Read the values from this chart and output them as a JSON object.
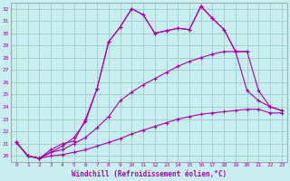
{
  "xlabel": "Windchill (Refroidissement éolien,°C)",
  "background_color": "#c8eef0",
  "grid_color": "#a0cdd0",
  "line_color": "#aa00aa",
  "xlim": [
    -0.5,
    23.5
  ],
  "ylim": [
    19.5,
    32.5
  ],
  "xticks": [
    0,
    1,
    2,
    3,
    4,
    5,
    6,
    7,
    8,
    9,
    10,
    11,
    12,
    13,
    14,
    15,
    16,
    17,
    18,
    19,
    20,
    21,
    22,
    23
  ],
  "yticks": [
    20,
    21,
    22,
    23,
    24,
    25,
    26,
    27,
    28,
    29,
    30,
    31,
    32
  ],
  "lines": [
    {
      "x": [
        0,
        1,
        2,
        3,
        4,
        5,
        6,
        7,
        8,
        9,
        10,
        11,
        12,
        13,
        14,
        15,
        16,
        17,
        18,
        19,
        20,
        21,
        22,
        23
      ],
      "y": [
        21.1,
        20.0,
        19.8,
        20.5,
        21.0,
        21.2,
        23.0,
        25.5,
        29.3,
        30.5,
        32.0,
        31.5,
        30.0,
        30.2,
        30.4,
        30.3,
        32.2,
        31.2,
        30.3,
        28.5,
        28.5,
        null,
        null,
        null
      ]
    },
    {
      "x": [
        0,
        1,
        2,
        3,
        4,
        5,
        6,
        7,
        8,
        9,
        10,
        11,
        12,
        13,
        14,
        15,
        16,
        17,
        18,
        19,
        20,
        21,
        22,
        23
      ],
      "y": [
        21.1,
        20.0,
        19.8,
        20.3,
        20.8,
        21.5,
        22.8,
        25.5,
        29.3,
        30.5,
        32.0,
        31.5,
        30.0,
        30.2,
        30.4,
        30.3,
        32.2,
        31.2,
        30.3,
        28.5,
        25.3,
        24.5,
        24.0,
        23.7
      ]
    },
    {
      "x": [
        0,
        1,
        2,
        3,
        4,
        5,
        6,
        7,
        8,
        9,
        10,
        11,
        12,
        13,
        14,
        15,
        16,
        17,
        18,
        19,
        20,
        21,
        22,
        23
      ],
      "y": [
        21.1,
        20.0,
        19.8,
        20.3,
        20.5,
        21.0,
        21.5,
        22.3,
        23.2,
        24.5,
        25.2,
        25.8,
        26.3,
        26.8,
        27.3,
        27.7,
        28.0,
        28.3,
        28.5,
        28.5,
        28.5,
        25.3,
        24.0,
        23.7
      ]
    },
    {
      "x": [
        0,
        1,
        2,
        3,
        4,
        5,
        6,
        7,
        8,
        9,
        10,
        11,
        12,
        13,
        14,
        15,
        16,
        17,
        18,
        19,
        20,
        21,
        22,
        23
      ],
      "y": [
        21.1,
        20.0,
        19.8,
        20.0,
        20.1,
        20.3,
        20.5,
        20.8,
        21.1,
        21.4,
        21.8,
        22.1,
        22.4,
        22.7,
        23.0,
        23.2,
        23.4,
        23.5,
        23.6,
        23.7,
        23.8,
        23.8,
        23.5,
        23.5
      ]
    }
  ]
}
